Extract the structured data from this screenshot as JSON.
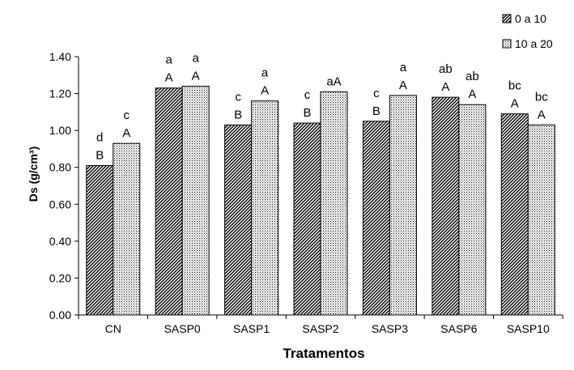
{
  "chart_data": {
    "type": "bar",
    "title": "",
    "xlabel": "Tratamentos",
    "ylabel": "Ds (g/cm³)",
    "ylim": [
      0,
      1.4
    ],
    "yticks": [
      "0.00",
      "0.20",
      "0.40",
      "0.60",
      "0.80",
      "1.00",
      "1.20",
      "1.40"
    ],
    "grid": false,
    "legend_position": "top-right",
    "categories": [
      "CN",
      "SASP0",
      "SASP1",
      "SASP2",
      "SASP3",
      "SASP6",
      "SASP10"
    ],
    "series": [
      {
        "name": "0 a 10",
        "pattern": "diagonal-hatch",
        "values": [
          0.81,
          1.23,
          1.03,
          1.04,
          1.05,
          1.18,
          1.09
        ],
        "letters_lower": [
          "d",
          "a",
          "c",
          "c",
          "c",
          "ab",
          "bc"
        ],
        "letters_upper": [
          "B",
          "A",
          "B",
          "B",
          "B",
          "A",
          "A"
        ]
      },
      {
        "name": "10 a 20",
        "pattern": "dotted",
        "values": [
          0.93,
          1.24,
          1.16,
          1.21,
          1.19,
          1.14,
          1.03
        ],
        "letters_lower": [
          "c",
          "a",
          "a",
          "aA",
          "a",
          "ab",
          "bc"
        ],
        "letters_upper": [
          "A",
          "A",
          "A",
          "",
          "A",
          "A",
          "A"
        ]
      }
    ]
  }
}
